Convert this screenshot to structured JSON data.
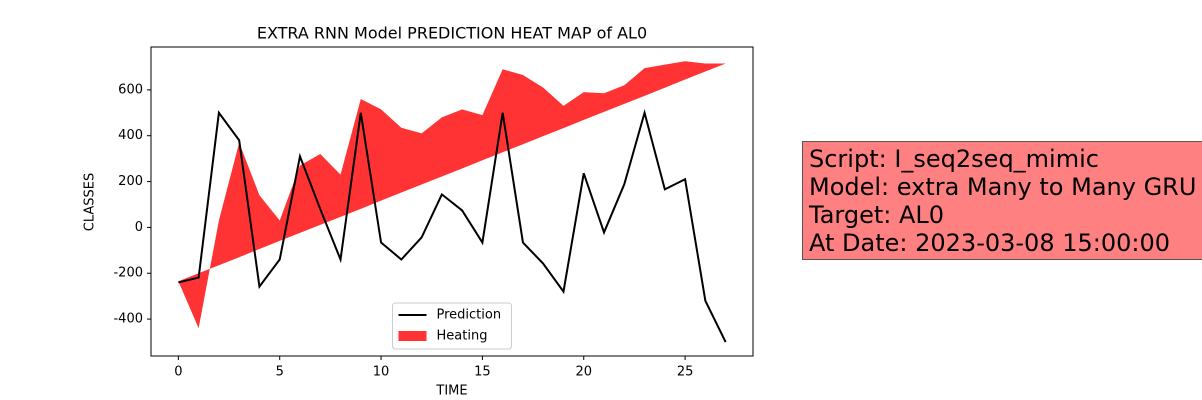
{
  "chart_data": {
    "type": "line",
    "title": "EXTRA RNN Model PREDICTION HEAT MAP of AL0",
    "xlabel": "TIME",
    "ylabel": "CLASSES",
    "x": [
      0,
      1,
      2,
      3,
      4,
      5,
      6,
      7,
      8,
      9,
      10,
      11,
      12,
      13,
      14,
      15,
      16,
      17,
      18,
      19,
      20,
      21,
      22,
      23,
      24,
      25,
      26,
      27
    ],
    "series": [
      {
        "name": "Prediction",
        "color": "#000000",
        "kind": "line",
        "values": [
          -240,
          -219,
          500,
          380,
          -258,
          -140,
          310,
          80,
          -140,
          500,
          -66,
          -140,
          -44,
          144,
          74,
          -66,
          500,
          -66,
          -158,
          -280,
          236,
          -22,
          188,
          500,
          166,
          210,
          -320,
          -500
        ]
      },
      {
        "name": "Heating",
        "color": "#ff0000",
        "kind": "fill",
        "values": [
          -235,
          -440,
          30,
          370,
          140,
          30,
          270,
          320,
          230,
          560,
          515,
          435,
          410,
          480,
          515,
          490,
          690,
          665,
          610,
          530,
          590,
          585,
          620,
          695,
          710,
          725,
          715,
          715
        ],
        "base": [
          -235,
          -200,
          -165,
          -130,
          -94,
          -59,
          -24,
          11,
          46,
          81,
          117,
          152,
          187,
          222,
          257,
          293,
          328,
          363,
          398,
          433,
          469,
          504,
          539,
          574,
          609,
          645,
          680,
          715
        ]
      }
    ],
    "xlim": [
      -1.35,
      28.35
    ],
    "ylim": [
      -561,
      787
    ],
    "xticks": [
      0,
      5,
      10,
      15,
      20,
      25
    ],
    "yticks": [
      -400,
      -200,
      0,
      200,
      400,
      600
    ],
    "legend": "lower center",
    "info_box": {
      "lines": [
        "Script: I_seq2seq_mimic",
        "Model: extra Many to Many GRU",
        "Target: AL0",
        "At Date: 2023-03-08 15:00:00"
      ],
      "color": "#ff8080"
    }
  }
}
